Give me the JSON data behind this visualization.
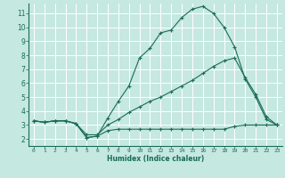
{
  "xlabel": "Humidex (Indice chaleur)",
  "bg_color": "#c5e8e0",
  "line_color": "#1a6b5a",
  "grid_color": "#ffffff",
  "xlim": [
    -0.5,
    23.5
  ],
  "ylim": [
    1.5,
    11.7
  ],
  "xticks": [
    0,
    1,
    2,
    3,
    4,
    5,
    6,
    7,
    8,
    9,
    10,
    11,
    12,
    13,
    14,
    15,
    16,
    17,
    18,
    19,
    20,
    21,
    22,
    23
  ],
  "yticks": [
    2,
    3,
    4,
    5,
    6,
    7,
    8,
    9,
    10,
    11
  ],
  "line1_x": [
    0,
    1,
    2,
    3,
    4,
    5,
    6,
    7,
    8,
    9,
    10,
    11,
    12,
    13,
    14,
    15,
    16,
    17,
    18,
    19,
    20,
    21,
    22,
    23
  ],
  "line1_y": [
    3.3,
    3.2,
    3.3,
    3.3,
    3.1,
    2.1,
    2.2,
    3.5,
    4.7,
    5.8,
    7.8,
    8.5,
    9.6,
    9.8,
    10.7,
    11.3,
    11.5,
    11.0,
    10.0,
    8.6,
    6.3,
    5.0,
    3.4,
    3.0
  ],
  "line2_x": [
    0,
    1,
    2,
    3,
    4,
    5,
    6,
    7,
    8,
    9,
    10,
    11,
    12,
    13,
    14,
    15,
    16,
    17,
    18,
    19,
    20,
    21,
    22,
    23
  ],
  "line2_y": [
    3.3,
    3.2,
    3.3,
    3.3,
    3.1,
    2.3,
    2.3,
    3.0,
    3.4,
    3.9,
    4.3,
    4.7,
    5.0,
    5.4,
    5.8,
    6.2,
    6.7,
    7.2,
    7.6,
    7.8,
    6.4,
    5.2,
    3.6,
    3.0
  ],
  "line3_x": [
    0,
    1,
    2,
    3,
    4,
    5,
    6,
    7,
    8,
    9,
    10,
    11,
    12,
    13,
    14,
    15,
    16,
    17,
    18,
    19,
    20,
    21,
    22,
    23
  ],
  "line3_y": [
    3.3,
    3.2,
    3.3,
    3.3,
    3.1,
    2.1,
    2.2,
    2.6,
    2.7,
    2.7,
    2.7,
    2.7,
    2.7,
    2.7,
    2.7,
    2.7,
    2.7,
    2.7,
    2.7,
    2.9,
    3.0,
    3.0,
    3.0,
    3.0
  ]
}
